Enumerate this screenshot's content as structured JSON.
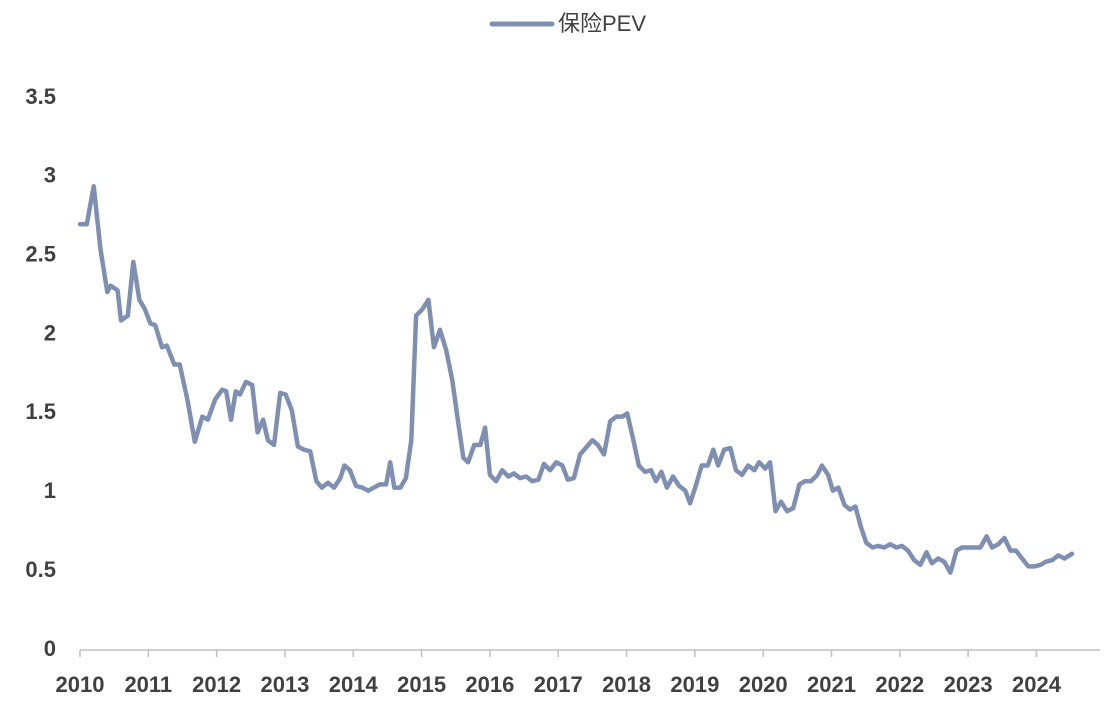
{
  "chart_data": {
    "type": "line",
    "x": [
      2010.0,
      2010.1,
      2010.2,
      2010.3,
      2010.4,
      2010.45,
      2010.55,
      2010.6,
      2010.7,
      2010.78,
      2010.87,
      2010.95,
      2011.03,
      2011.1,
      2011.2,
      2011.27,
      2011.38,
      2011.46,
      2011.57,
      2011.68,
      2011.79,
      2011.87,
      2011.98,
      2012.08,
      2012.14,
      2012.21,
      2012.28,
      2012.34,
      2012.43,
      2012.52,
      2012.6,
      2012.68,
      2012.75,
      2012.84,
      2012.93,
      2013.01,
      2013.1,
      2013.19,
      2013.28,
      2013.37,
      2013.46,
      2013.54,
      2013.63,
      2013.72,
      2013.81,
      2013.87,
      2013.95,
      2014.04,
      2014.13,
      2014.22,
      2014.3,
      2014.39,
      2014.48,
      2014.54,
      2014.6,
      2014.69,
      2014.77,
      2014.85,
      2014.92,
      2015.01,
      2015.1,
      2015.18,
      2015.27,
      2015.36,
      2015.45,
      2015.53,
      2015.61,
      2015.68,
      2015.77,
      2015.86,
      2015.93,
      2016.0,
      2016.09,
      2016.18,
      2016.27,
      2016.35,
      2016.44,
      2016.53,
      2016.62,
      2016.71,
      2016.79,
      2016.88,
      2016.97,
      2017.06,
      2017.14,
      2017.23,
      2017.32,
      2017.4,
      2017.5,
      2017.58,
      2017.67,
      2017.76,
      2017.85,
      2017.94,
      2018.01,
      2018.1,
      2018.18,
      2018.27,
      2018.36,
      2018.43,
      2018.51,
      2018.59,
      2018.68,
      2018.77,
      2018.86,
      2018.93,
      2019.02,
      2019.1,
      2019.19,
      2019.27,
      2019.34,
      2019.43,
      2019.52,
      2019.6,
      2019.69,
      2019.78,
      2019.87,
      2019.94,
      2020.03,
      2020.1,
      2020.18,
      2020.26,
      2020.35,
      2020.44,
      2020.53,
      2020.61,
      2020.7,
      2020.79,
      2020.86,
      2020.95,
      2021.02,
      2021.1,
      2021.19,
      2021.27,
      2021.35,
      2021.43,
      2021.51,
      2021.6,
      2021.68,
      2021.77,
      2021.86,
      2021.95,
      2022.03,
      2022.12,
      2022.21,
      2022.3,
      2022.39,
      2022.47,
      2022.56,
      2022.65,
      2022.74,
      2022.83,
      2022.91,
      2023.0,
      2023.09,
      2023.18,
      2023.27,
      2023.35,
      2023.44,
      2023.53,
      2023.62,
      2023.7,
      2023.79,
      2023.88,
      2023.97,
      2024.06,
      2024.14,
      2024.23,
      2024.32,
      2024.41,
      2024.52
    ],
    "series": [
      {
        "name": "保险PEV",
        "color": "#7f8fb1",
        "values": [
          2.7,
          2.7,
          2.94,
          2.54,
          2.27,
          2.31,
          2.28,
          2.09,
          2.12,
          2.46,
          2.22,
          2.16,
          2.07,
          2.06,
          1.92,
          1.93,
          1.81,
          1.81,
          1.59,
          1.32,
          1.48,
          1.46,
          1.59,
          1.65,
          1.64,
          1.46,
          1.64,
          1.62,
          1.7,
          1.68,
          1.38,
          1.46,
          1.33,
          1.3,
          1.63,
          1.62,
          1.52,
          1.29,
          1.27,
          1.26,
          1.07,
          1.03,
          1.06,
          1.03,
          1.09,
          1.17,
          1.14,
          1.04,
          1.03,
          1.01,
          1.03,
          1.05,
          1.05,
          1.19,
          1.03,
          1.03,
          1.09,
          1.33,
          2.12,
          2.16,
          2.22,
          1.92,
          2.03,
          1.9,
          1.71,
          1.46,
          1.22,
          1.19,
          1.3,
          1.3,
          1.41,
          1.11,
          1.07,
          1.14,
          1.1,
          1.12,
          1.09,
          1.1,
          1.07,
          1.08,
          1.18,
          1.14,
          1.19,
          1.17,
          1.08,
          1.09,
          1.24,
          1.28,
          1.33,
          1.3,
          1.24,
          1.45,
          1.48,
          1.48,
          1.5,
          1.33,
          1.17,
          1.13,
          1.14,
          1.07,
          1.13,
          1.03,
          1.1,
          1.04,
          1.01,
          0.93,
          1.05,
          1.17,
          1.17,
          1.27,
          1.17,
          1.27,
          1.28,
          1.14,
          1.11,
          1.17,
          1.14,
          1.19,
          1.15,
          1.19,
          0.88,
          0.94,
          0.88,
          0.9,
          1.05,
          1.07,
          1.07,
          1.11,
          1.17,
          1.11,
          1.01,
          1.03,
          0.92,
          0.89,
          0.91,
          0.78,
          0.68,
          0.65,
          0.66,
          0.65,
          0.67,
          0.65,
          0.66,
          0.63,
          0.57,
          0.54,
          0.62,
          0.55,
          0.58,
          0.56,
          0.49,
          0.63,
          0.65,
          0.65,
          0.65,
          0.65,
          0.72,
          0.65,
          0.67,
          0.71,
          0.63,
          0.63,
          0.58,
          0.53,
          0.53,
          0.54,
          0.56,
          0.57,
          0.6,
          0.58,
          0.61
        ]
      }
    ],
    "xlim": [
      2010,
      2024.93
    ],
    "xticks": [
      2010,
      2011,
      2012,
      2013,
      2014,
      2015,
      2016,
      2017,
      2018,
      2019,
      2020,
      2021,
      2022,
      2023,
      2024
    ],
    "ylim": [
      0,
      3.5
    ],
    "yticks": [
      0,
      0.5,
      1,
      1.5,
      2,
      2.5,
      3,
      3.5
    ],
    "legend": "top",
    "grid": false
  }
}
